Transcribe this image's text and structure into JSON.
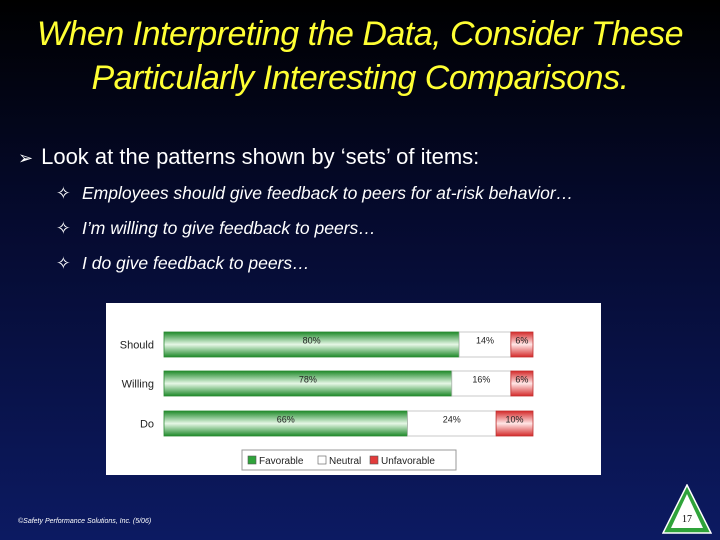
{
  "title": {
    "line1": "When Interpreting the Data, Consider These",
    "line2": "Particularly Interesting Comparisons."
  },
  "bullet": "Look at the patterns shown by ‘sets’ of items:",
  "sub_bullets": [
    "Employees should give feedback to peers for at-risk behavior…",
    "I’m willing to give feedback to peers…",
    "I do give feedback to peers…"
  ],
  "footer": "©Safety Performance Solutions, Inc. (5/06)",
  "page_number": "17",
  "icons": {
    "bullet": "arrow-right-icon",
    "sub_bullet": "four-point-star-icon",
    "logo": "triangle-logo-icon"
  },
  "chart_data": {
    "type": "bar",
    "orientation": "horizontal",
    "stacked": true,
    "categories": [
      "Should",
      "Willing",
      "Do"
    ],
    "series": [
      {
        "name": "Favorable",
        "values": [
          80,
          78,
          66
        ],
        "labels": [
          "80%",
          "78%",
          "66%"
        ],
        "color": "#2fa33a"
      },
      {
        "name": "Neutral",
        "values": [
          14,
          16,
          24
        ],
        "labels": [
          "14%",
          "16%",
          "24%"
        ],
        "color": "#ffffff"
      },
      {
        "name": "Unfavorable",
        "values": [
          6,
          6,
          10
        ],
        "labels": [
          "6%",
          "6%",
          "10%"
        ],
        "color": "#e23b3b"
      }
    ],
    "xlim": [
      0,
      100
    ],
    "legend": "bottom-center",
    "grid": false
  }
}
